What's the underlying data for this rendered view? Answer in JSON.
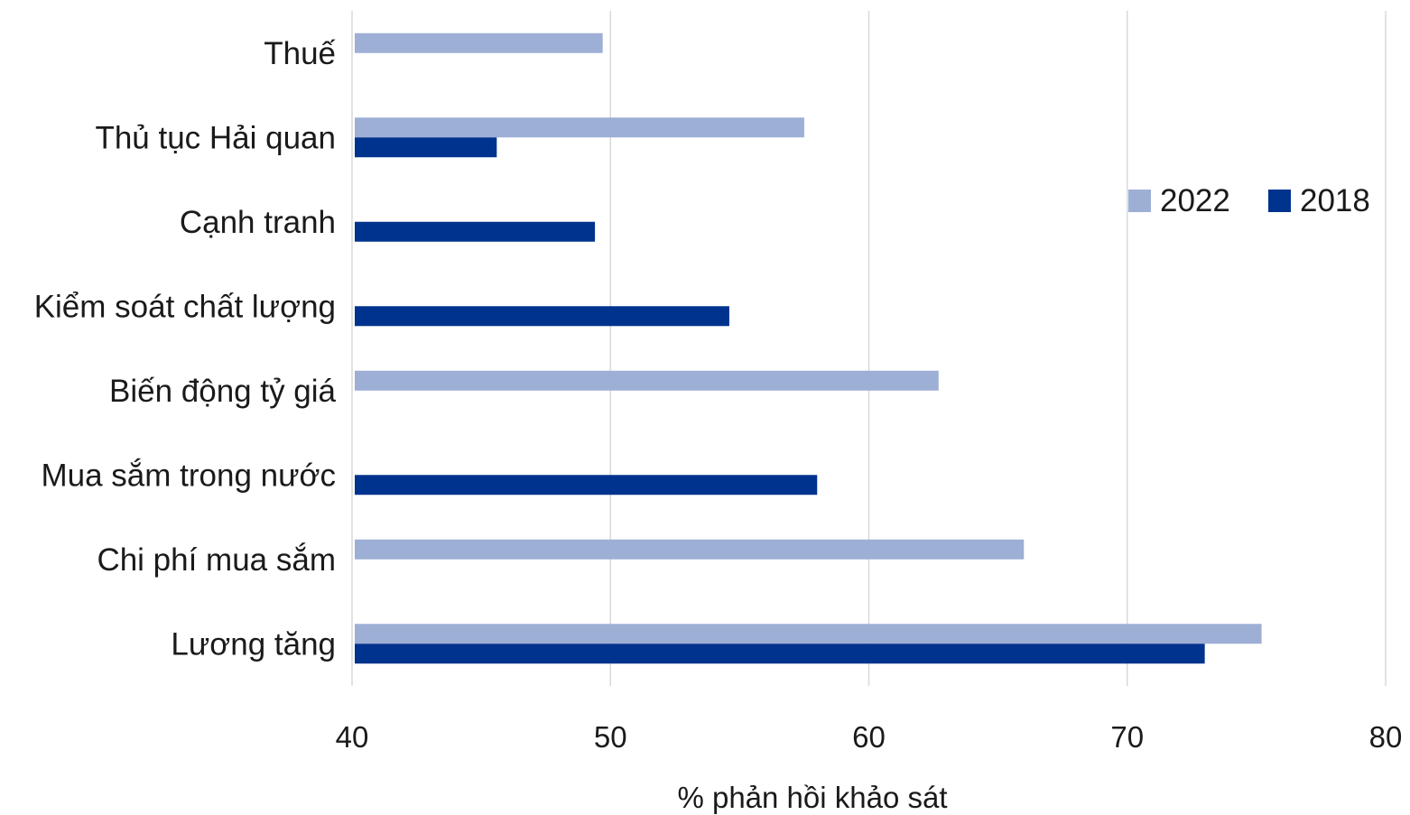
{
  "chart_data": {
    "type": "bar",
    "orientation": "horizontal",
    "categories": [
      "Thuế",
      "Thủ tục Hải quan",
      "Cạnh tranh",
      "Kiểm soát chất lượng",
      "Biến động tỷ giá",
      "Mua sắm trong nước",
      "Chi phí mua sắm",
      "Lương tăng"
    ],
    "series": [
      {
        "name": "2022",
        "color": "#9eafd5",
        "values": [
          49.7,
          57.5,
          null,
          null,
          62.7,
          null,
          66.0,
          75.2
        ]
      },
      {
        "name": "2018",
        "color": "#00338d",
        "values": [
          null,
          45.6,
          49.4,
          54.6,
          null,
          58.0,
          null,
          73.0
        ]
      }
    ],
    "xlabel": "% phản hồi khảo sát",
    "ylabel": "",
    "xlim": [
      40,
      80
    ],
    "xticks": [
      "40",
      "50",
      "60",
      "70",
      "80"
    ],
    "grid": "vertical",
    "legend_position": "right"
  }
}
